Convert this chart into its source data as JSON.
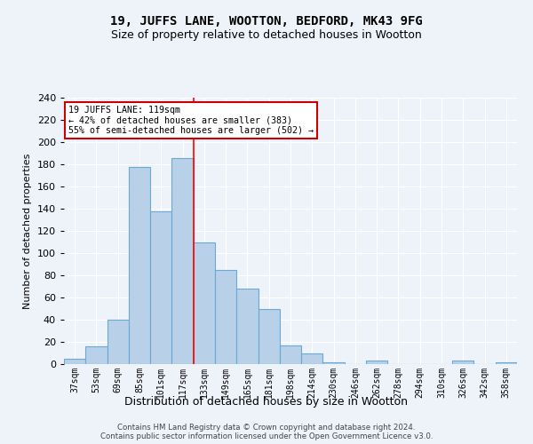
{
  "title": "19, JUFFS LANE, WOOTTON, BEDFORD, MK43 9FG",
  "subtitle": "Size of property relative to detached houses in Wootton",
  "xlabel": "Distribution of detached houses by size in Wootton",
  "ylabel": "Number of detached properties",
  "categories": [
    "37sqm",
    "53sqm",
    "69sqm",
    "85sqm",
    "101sqm",
    "117sqm",
    "133sqm",
    "149sqm",
    "165sqm",
    "181sqm",
    "198sqm",
    "214sqm",
    "230sqm",
    "246sqm",
    "262sqm",
    "278sqm",
    "294sqm",
    "310sqm",
    "326sqm",
    "342sqm",
    "358sqm"
  ],
  "values": [
    5,
    16,
    40,
    178,
    138,
    186,
    110,
    85,
    68,
    50,
    17,
    10,
    2,
    0,
    3,
    0,
    0,
    0,
    3,
    0,
    2
  ],
  "bar_color": "#b8d0e8",
  "bar_edge_color": "#6aaad4",
  "highlight_line_bin": 5,
  "annotation_title": "19 JUFFS LANE: 119sqm",
  "annotation_line1": "← 42% of detached houses are smaller (383)",
  "annotation_line2": "55% of semi-detached houses are larger (502) →",
  "annotation_box_color": "#ffffff",
  "annotation_box_edge": "#cc0000",
  "ylim": [
    0,
    240
  ],
  "yticks": [
    0,
    20,
    40,
    60,
    80,
    100,
    120,
    140,
    160,
    180,
    200,
    220,
    240
  ],
  "footer1": "Contains HM Land Registry data © Crown copyright and database right 2024.",
  "footer2": "Contains public sector information licensed under the Open Government Licence v3.0.",
  "bg_color": "#eef2f9",
  "grid_color": "#ffffff",
  "title_fontsize": 10,
  "subtitle_fontsize": 9
}
